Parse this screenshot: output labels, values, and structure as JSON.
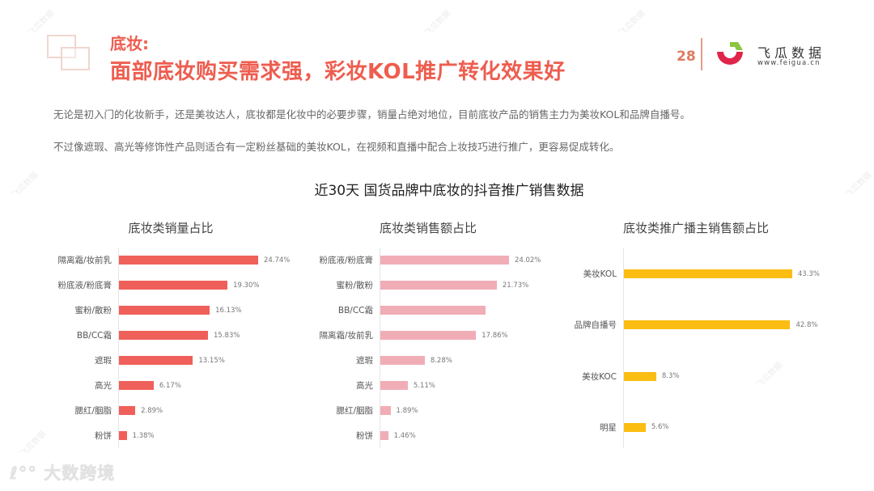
{
  "header": {
    "section_label": "底妆:",
    "title": "面部底妆购买需求强，彩妆KOL推广转化效果好",
    "page_number": "28",
    "brand": {
      "name": "飞瓜数据",
      "url": "www.feigua.cn"
    }
  },
  "body_text": [
    "无论是初入门的化妆新手，还是美妆达人，底妆都是化妆中的必要步骤，销量占绝对地位，目前底妆产品的销售主力为美妆KOL和品牌自播号。",
    "不过像遮瑕、高光等修饰性产品则适合有一定粉丝基础的美妆KOL，在视频和直播中配合上妆技巧进行推广，更容易促成转化。"
  ],
  "figure_title": "近30天 国货品牌中底妆的抖音推广销售数据",
  "footer": {
    "watermark_logo": "大数跨境"
  },
  "colors": {
    "title_red": "#ee5d4f",
    "bar_red": "#f0605a",
    "bar_pink": "#f1adb6",
    "bar_yellow": "#fbbd12"
  },
  "chart_data": [
    {
      "type": "bar",
      "orientation": "horizontal",
      "title": "底妆类销量占比",
      "categories": [
        "隔离霜/妆前乳",
        "粉底液/粉底膏",
        "蜜粉/散粉",
        "BB/CC霜",
        "遮瑕",
        "高光",
        "腮红/胭脂",
        "粉饼"
      ],
      "values": [
        24.74,
        19.3,
        16.13,
        15.83,
        13.15,
        6.17,
        2.89,
        1.38
      ],
      "labels": [
        "24.74%",
        "19.30%",
        "16.13%",
        "15.83%",
        "13.15%",
        "6.17%",
        "2.89%",
        "1.38%"
      ],
      "unit": "%",
      "color": "#f0605a",
      "grid": false
    },
    {
      "type": "bar",
      "orientation": "horizontal",
      "title": "底妆类销售额占比",
      "categories": [
        "粉底液/粉底膏",
        "蜜粉/散粉",
        "BB/CC霜",
        "隔离霜/妆前乳",
        "遮瑕",
        "高光",
        "腮红/胭脂",
        "粉饼"
      ],
      "values": [
        24.02,
        21.73,
        19.6,
        17.86,
        8.28,
        5.11,
        1.89,
        1.46
      ],
      "labels": [
        "24.02%",
        "21.73%",
        "",
        "17.86%",
        "8.28%",
        "5.11%",
        "1.89%",
        "1.46%"
      ],
      "unit": "%",
      "color": "#f1adb6",
      "grid": false
    },
    {
      "type": "bar",
      "orientation": "horizontal",
      "title": "底妆类推广播主销售额占比",
      "categories": [
        "美妆KOL",
        "品牌自播号",
        "美妆KOC",
        "明星"
      ],
      "values": [
        43.3,
        42.8,
        8.3,
        5.6
      ],
      "labels": [
        "43.3%",
        "42.8%",
        "8.3%",
        "5.6%"
      ],
      "unit": "%",
      "color": "#fbbd12",
      "grid": false
    }
  ]
}
